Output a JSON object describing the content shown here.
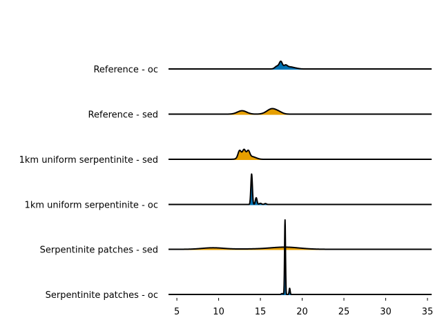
{
  "chart_data": {
    "type": "ridgeline",
    "title": "",
    "xlabel": "",
    "ylabel": "",
    "xlim": [
      4,
      35.5
    ],
    "xticks": [
      5,
      10,
      15,
      20,
      25,
      30,
      35
    ],
    "colors": {
      "oc": "#0072b2",
      "sed": "#e69f00",
      "outline": "#000000"
    },
    "series": [
      {
        "name": "Reference - oc",
        "group": "oc",
        "components": [
          {
            "mu": 17.45,
            "sigma": 0.18,
            "w": 0.62
          },
          {
            "mu": 17.0,
            "sigma": 0.25,
            "w": 0.25
          },
          {
            "mu": 18.0,
            "sigma": 0.22,
            "w": 0.3
          },
          {
            "mu": 18.5,
            "sigma": 0.35,
            "w": 0.15
          },
          {
            "mu": 19.1,
            "sigma": 0.4,
            "w": 0.08
          }
        ]
      },
      {
        "name": "Reference - sed",
        "group": "sed",
        "components": [
          {
            "mu": 12.8,
            "sigma": 0.55,
            "w": 0.3
          },
          {
            "mu": 16.4,
            "sigma": 0.6,
            "w": 0.48
          },
          {
            "mu": 17.3,
            "sigma": 0.4,
            "w": 0.1
          }
        ]
      },
      {
        "name": "1km uniform serpentinite - sed",
        "group": "sed",
        "components": [
          {
            "mu": 12.5,
            "sigma": 0.18,
            "w": 0.58
          },
          {
            "mu": 13.05,
            "sigma": 0.18,
            "w": 0.58
          },
          {
            "mu": 13.55,
            "sigma": 0.18,
            "w": 0.62
          },
          {
            "mu": 12.9,
            "sigma": 0.45,
            "w": 0.3
          },
          {
            "mu": 14.0,
            "sigma": 0.3,
            "w": 0.2
          },
          {
            "mu": 14.5,
            "sigma": 0.3,
            "w": 0.08
          }
        ]
      },
      {
        "name": "1km uniform serpentinite - oc",
        "group": "oc",
        "components": [
          {
            "mu": 13.95,
            "sigma": 0.09,
            "w": 2.7
          },
          {
            "mu": 14.5,
            "sigma": 0.1,
            "w": 0.6
          },
          {
            "mu": 15.0,
            "sigma": 0.14,
            "w": 0.1
          },
          {
            "mu": 15.6,
            "sigma": 0.12,
            "w": 0.08
          }
        ]
      },
      {
        "name": "Serpentinite patches - sed",
        "group": "sed",
        "components": [
          {
            "mu": 9.3,
            "sigma": 1.3,
            "w": 0.13
          },
          {
            "mu": 18.0,
            "sigma": 1.7,
            "w": 0.18
          },
          {
            "mu": 14.5,
            "sigma": 2.5,
            "w": 0.03
          }
        ]
      },
      {
        "name": "Serpentinite patches - oc",
        "group": "oc",
        "components": [
          {
            "mu": 17.95,
            "sigma": 0.055,
            "w": 6.6
          },
          {
            "mu": 18.5,
            "sigma": 0.06,
            "w": 0.55
          },
          {
            "mu": 17.6,
            "sigma": 0.1,
            "w": 0.08
          }
        ]
      }
    ]
  }
}
